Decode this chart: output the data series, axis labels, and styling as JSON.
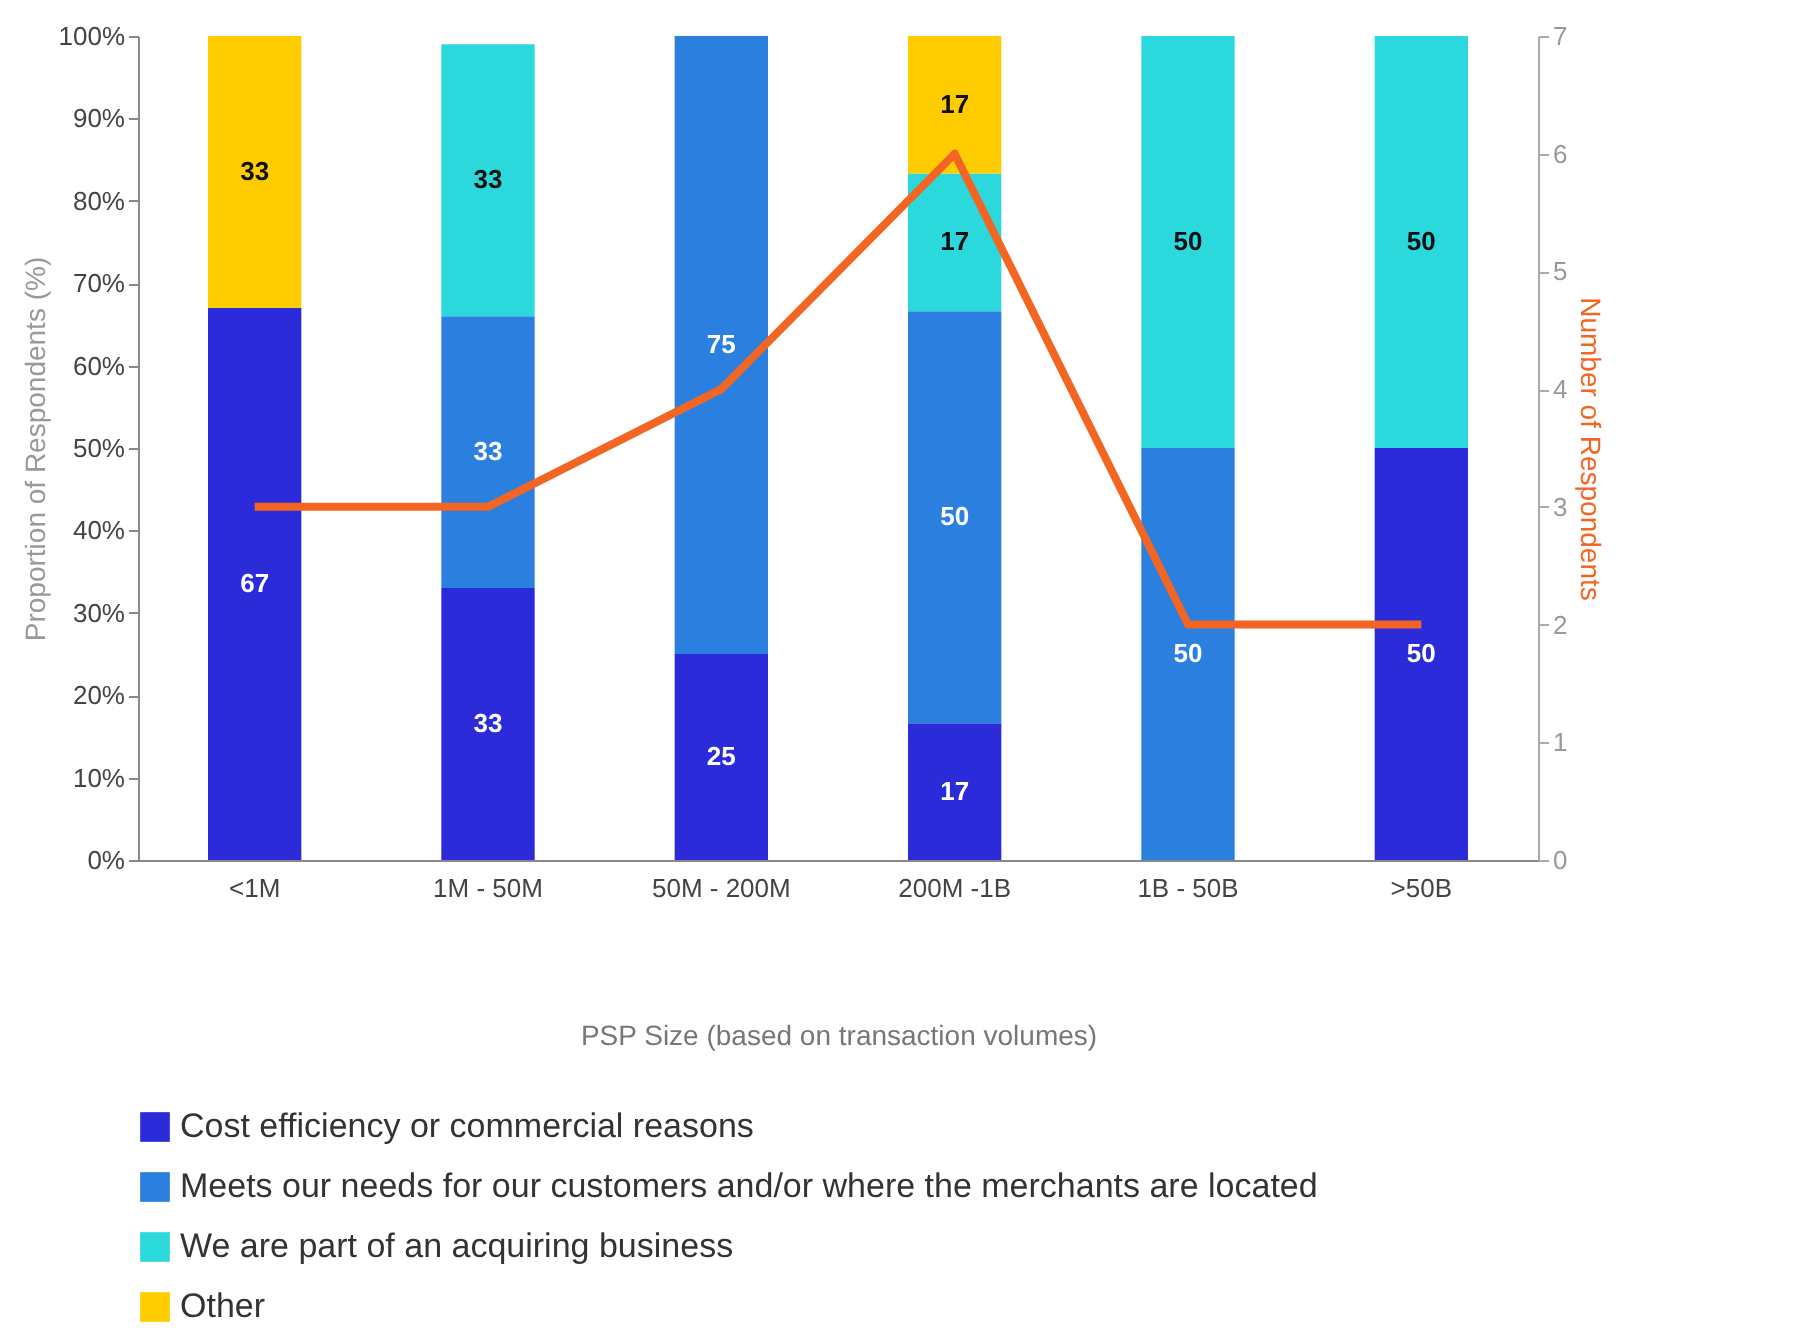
{
  "chart_data": {
    "type": "bar",
    "stacked": true,
    "xlabel": "PSP Size (based on transaction volumes)",
    "ylabel": "Proportion of Respondents (%)",
    "y2label": "Number of Respondents",
    "categories": [
      "<1M",
      "1M - 50M",
      "50M - 200M",
      "200M -1B",
      "1B - 50B",
      ">50B"
    ],
    "series": [
      {
        "name": "Cost efficiency or commercial reasons",
        "color": "#2b2bd9",
        "values": [
          67,
          33,
          25,
          16.6,
          0,
          50
        ],
        "value_labels": [
          "67",
          "33",
          "25",
          "17",
          null,
          "50"
        ]
      },
      {
        "name": "Meets our needs for our customers and/or where the merchants are located",
        "color": "#2a7fdf",
        "values": [
          0,
          33,
          75,
          50,
          50,
          0
        ],
        "value_labels": [
          null,
          "33",
          "75",
          "50",
          "50",
          null
        ]
      },
      {
        "name": "We are part of an acquiring business",
        "color": "#2bd9dc",
        "values": [
          0,
          33,
          0,
          16.7,
          50,
          50
        ],
        "value_labels": [
          null,
          "33",
          null,
          "17",
          "50",
          "50"
        ]
      },
      {
        "name": "Other",
        "color": "#ffcc00",
        "values": [
          33,
          0,
          0,
          16.7,
          0,
          0
        ],
        "value_labels": [
          "33",
          null,
          null,
          "17",
          null,
          null
        ]
      },
      {
        "type": "line",
        "axis": "y2",
        "color": "#f26522",
        "values": [
          3,
          3,
          4,
          6,
          2,
          2
        ]
      }
    ],
    "ylim": [
      0,
      100
    ],
    "yticks": [
      {
        "value": 0,
        "label": "0%"
      },
      {
        "value": 10,
        "label": "10%"
      },
      {
        "value": 20,
        "label": "20%"
      },
      {
        "value": 30,
        "label": "30%"
      },
      {
        "value": 40,
        "label": "40%"
      },
      {
        "value": 50,
        "label": "50%"
      },
      {
        "value": 60,
        "label": "60%"
      },
      {
        "value": 70,
        "label": "70%"
      },
      {
        "value": 80,
        "label": "80%"
      },
      {
        "value": 90,
        "label": "90%"
      },
      {
        "value": 100,
        "label": "100%"
      }
    ],
    "y2lim": [
      0,
      7
    ],
    "y2ticks": [
      0,
      1,
      2,
      3,
      4,
      5,
      6,
      7
    ],
    "legend": "bottom"
  }
}
